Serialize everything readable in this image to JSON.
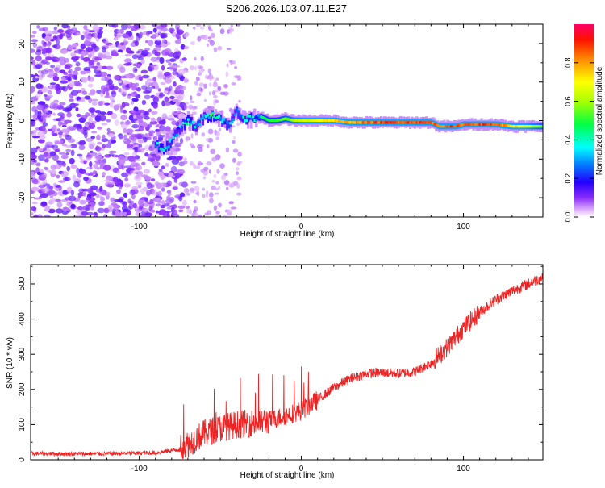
{
  "title": "S206.2026.103.07.11.E27",
  "chart_data": [
    {
      "type": "heatmap",
      "name": "spectrogram",
      "xlabel": "Height of straight line (km)",
      "ylabel": "Frequency (Hz)",
      "xlim": [
        -167,
        149
      ],
      "ylim": [
        -25,
        25
      ],
      "xticks": [
        -100,
        0,
        100
      ],
      "yticks": [
        -20,
        -10,
        0,
        10,
        20
      ],
      "ridge": [
        {
          "x": -90,
          "f": -6.5,
          "a": 0.35
        },
        {
          "x": -85,
          "f": -7.0,
          "a": 0.4
        },
        {
          "x": -80,
          "f": -5.5,
          "a": 0.3
        },
        {
          "x": -75,
          "f": -2.0,
          "a": 0.3
        },
        {
          "x": -70,
          "f": 0.0,
          "a": 0.4
        },
        {
          "x": -65,
          "f": -1.5,
          "a": 0.3
        },
        {
          "x": -60,
          "f": 1.0,
          "a": 0.3
        },
        {
          "x": -55,
          "f": 1.5,
          "a": 0.45
        },
        {
          "x": -50,
          "f": 0.5,
          "a": 0.3
        },
        {
          "x": -45,
          "f": -1.5,
          "a": 0.3
        },
        {
          "x": -40,
          "f": 2.5,
          "a": 0.3
        },
        {
          "x": -35,
          "f": 0.5,
          "a": 0.35
        },
        {
          "x": -30,
          "f": 0.5,
          "a": 0.4
        },
        {
          "x": -25,
          "f": 1.0,
          "a": 0.45
        },
        {
          "x": -20,
          "f": 0.0,
          "a": 0.5
        },
        {
          "x": -15,
          "f": 0.0,
          "a": 0.5
        },
        {
          "x": -10,
          "f": 0.5,
          "a": 0.55
        },
        {
          "x": -5,
          "f": 0.0,
          "a": 0.6
        },
        {
          "x": 0,
          "f": 0.0,
          "a": 0.65
        },
        {
          "x": 10,
          "f": 0.0,
          "a": 0.7
        },
        {
          "x": 20,
          "f": 0.0,
          "a": 0.75
        },
        {
          "x": 30,
          "f": -0.5,
          "a": 0.8
        },
        {
          "x": 40,
          "f": -0.5,
          "a": 0.85
        },
        {
          "x": 50,
          "f": -0.5,
          "a": 0.9
        },
        {
          "x": 60,
          "f": -0.5,
          "a": 0.9
        },
        {
          "x": 70,
          "f": -0.5,
          "a": 0.9
        },
        {
          "x": 80,
          "f": -0.5,
          "a": 0.88
        },
        {
          "x": 85,
          "f": -1.5,
          "a": 0.85
        },
        {
          "x": 90,
          "f": -1.5,
          "a": 0.9
        },
        {
          "x": 95,
          "f": -1.5,
          "a": 0.85
        },
        {
          "x": 100,
          "f": -1.0,
          "a": 0.88
        },
        {
          "x": 110,
          "f": -1.0,
          "a": 0.9
        },
        {
          "x": 120,
          "f": -1.0,
          "a": 0.88
        },
        {
          "x": 130,
          "f": -1.5,
          "a": 0.75
        },
        {
          "x": 140,
          "f": -1.5,
          "a": 0.65
        },
        {
          "x": 149,
          "f": -1.5,
          "a": 0.55
        }
      ],
      "colorbar": {
        "label": "Normalized spectral amplitude",
        "range": [
          0.0,
          1.0
        ],
        "ticks": [
          "0.0",
          "0.2",
          "0.4",
          "0.6",
          "0.8"
        ],
        "colors": [
          "#ffffff",
          "#cc88ff",
          "#7700ff",
          "#0000ff",
          "#00ffff",
          "#00ff00",
          "#ffff00",
          "#ff8800",
          "#ff0000",
          "#ff0077"
        ]
      }
    },
    {
      "type": "line",
      "name": "snr",
      "xlabel": "Height of straight line (km)",
      "ylabel": "SNR (10 * v/v)",
      "xlim": [
        -167,
        149
      ],
      "ylim": [
        0,
        555
      ],
      "xticks": [
        -100,
        0,
        100
      ],
      "yticks": [
        0,
        100,
        200,
        300,
        400,
        500
      ],
      "color": "#ee2222",
      "trend": {
        "x": [
          -167,
          -140,
          -110,
          -90,
          -75,
          -70,
          -60,
          -50,
          -40,
          -30,
          -20,
          -10,
          0,
          10,
          20,
          30,
          40,
          50,
          60,
          70,
          80,
          90,
          100,
          110,
          120,
          130,
          140,
          149
        ],
        "y": [
          18,
          17,
          18,
          20,
          30,
          45,
          75,
          90,
          100,
          105,
          112,
          125,
          140,
          170,
          205,
          230,
          245,
          248,
          245,
          250,
          275,
          320,
          375,
          420,
          455,
          480,
          500,
          520
        ]
      }
    }
  ]
}
